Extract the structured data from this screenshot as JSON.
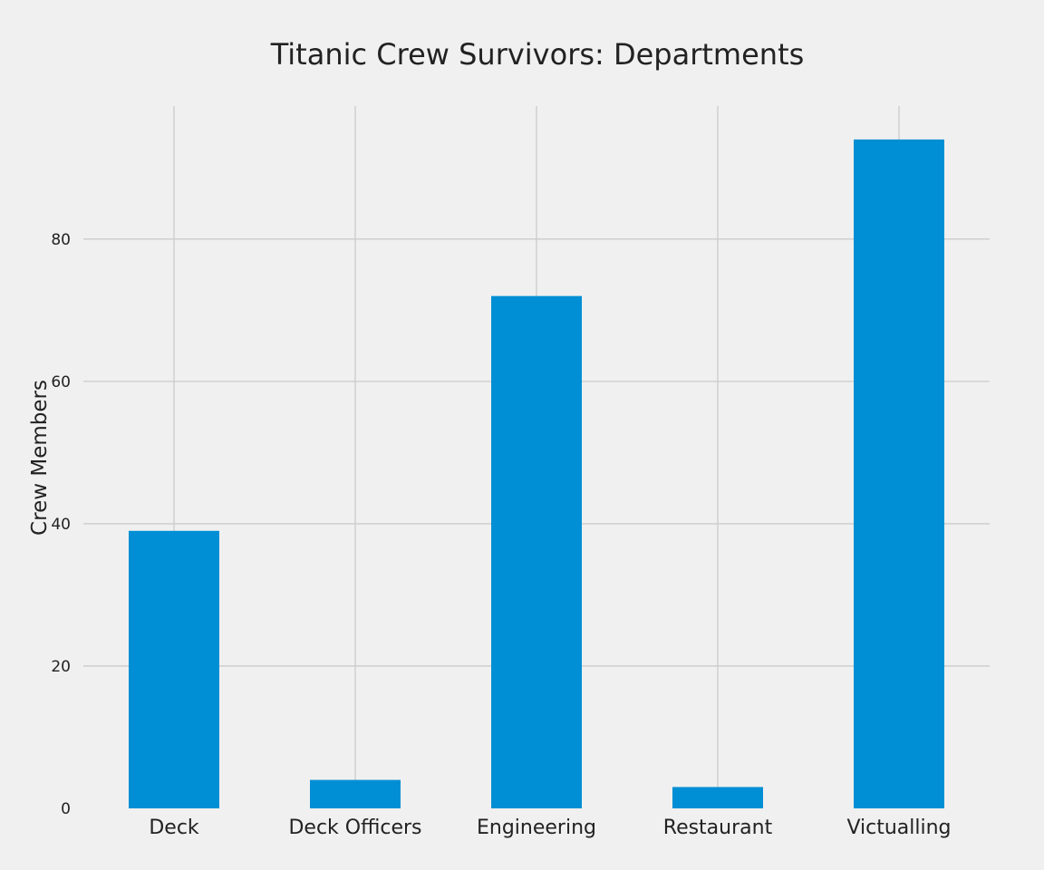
{
  "chart_data": {
    "type": "bar",
    "title": "Titanic Crew Survivors: Departments",
    "xlabel": "",
    "ylabel": "Crew Members",
    "categories": [
      "Deck",
      "Deck Officers",
      "Engineering",
      "Restaurant",
      "Victualling"
    ],
    "values": [
      39,
      4,
      72,
      3,
      94
    ],
    "ylim": [
      0,
      98.7
    ],
    "yticks": [
      0,
      20,
      40,
      60,
      80
    ],
    "grid": true,
    "legend": "none",
    "colors": {
      "bar": "#008fd5",
      "background": "#f0f0f0",
      "grid": "#cbcbcb",
      "text": "#222222"
    }
  }
}
